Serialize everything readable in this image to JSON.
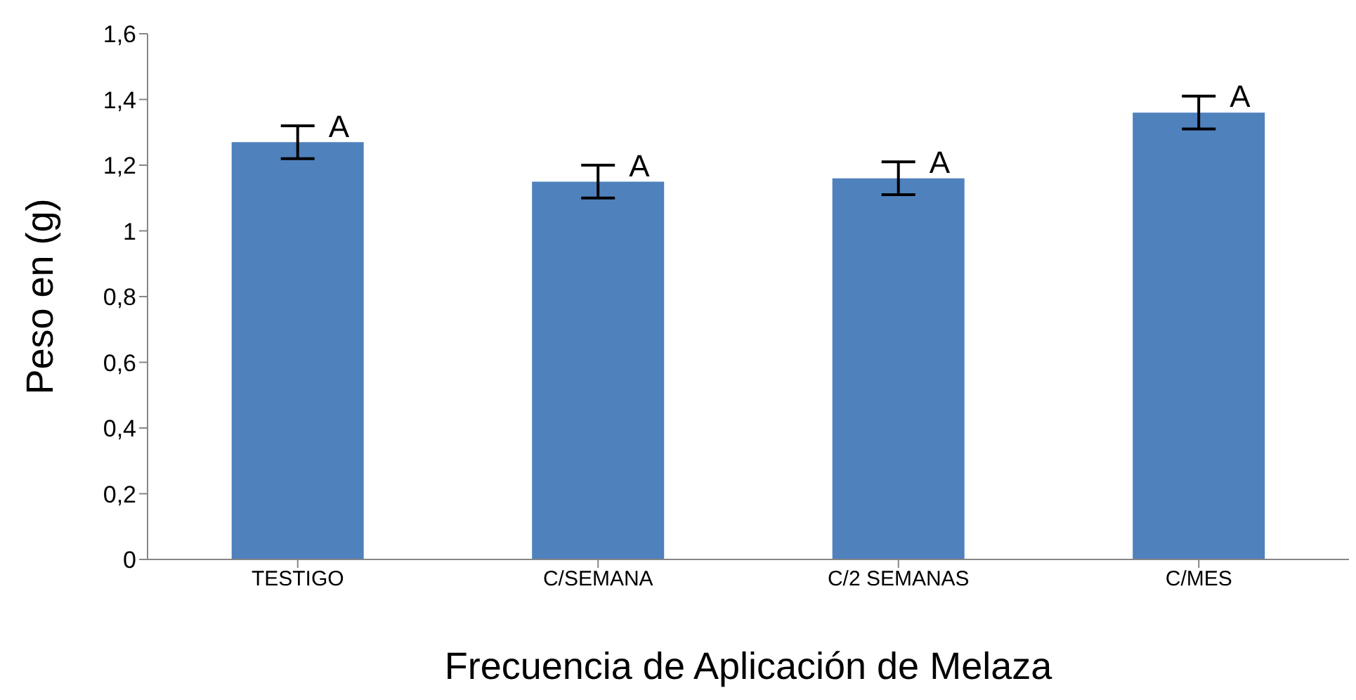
{
  "chart_data": {
    "type": "bar",
    "xlabel": "Frecuencia de Aplicación de Melaza",
    "ylabel": "Peso en (g)",
    "categories": [
      "TESTIGO",
      "C/SEMANA",
      "C/2 SEMANAS",
      "C/MES"
    ],
    "values": [
      1.27,
      1.15,
      1.16,
      1.36
    ],
    "errors": [
      0.05,
      0.05,
      0.05,
      0.05
    ],
    "color": "#4f81bd",
    "ylim": [
      0,
      1.6
    ],
    "yticks": [
      0,
      {
        "value": 0.2,
        "label": "0,2"
      },
      {
        "value": 0.4,
        "label": "0,4"
      },
      {
        "value": 0.6,
        "label": "0,6"
      },
      {
        "value": 0.8,
        "label": "0,8"
      },
      1,
      {
        "value": 1.2,
        "label": "1,2"
      },
      {
        "value": 1.4,
        "label": "1,4"
      },
      {
        "value": 1.6,
        "label": "1,6"
      }
    ],
    "grid": false,
    "annotations": [
      {
        "text": "A",
        "x": "TESTIGO",
        "y": 1.32
      },
      {
        "text": "A",
        "x": "C/SEMANA",
        "y": 1.2
      },
      {
        "text": "A",
        "x": "C/2 SEMANAS",
        "y": 1.21
      },
      {
        "text": "A",
        "x": "C/MES",
        "y": 1.41
      }
    ]
  }
}
